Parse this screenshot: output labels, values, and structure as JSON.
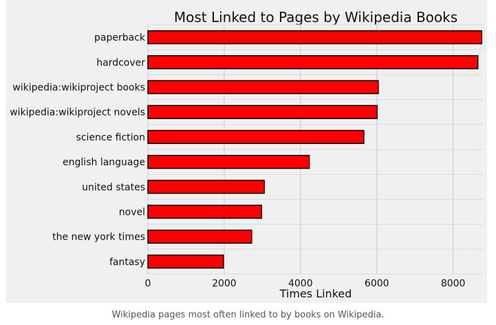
{
  "chart_data": {
    "type": "bar",
    "orientation": "horizontal",
    "title": "Most Linked to Pages by Wikipedia Books",
    "xlabel": "Times Linked",
    "ylabel": "",
    "xlim": [
      0,
      8800
    ],
    "xticks": [
      0,
      2000,
      4000,
      6000,
      8000
    ],
    "grid": true,
    "bar_color": "#ff0000",
    "bar_edge_color": "#000000",
    "background": "#f0f0f0",
    "categories": [
      "paperback",
      "hardcover",
      "wikipedia:wikiproject books",
      "wikipedia:wikiproject novels",
      "science fiction",
      "english language",
      "united states",
      "novel",
      "the new york times",
      "fantasy"
    ],
    "values": [
      8750,
      8650,
      6040,
      6010,
      5660,
      4230,
      3050,
      2980,
      2720,
      1980
    ]
  },
  "caption": "Wikipedia pages most often linked to by books on Wikipedia."
}
